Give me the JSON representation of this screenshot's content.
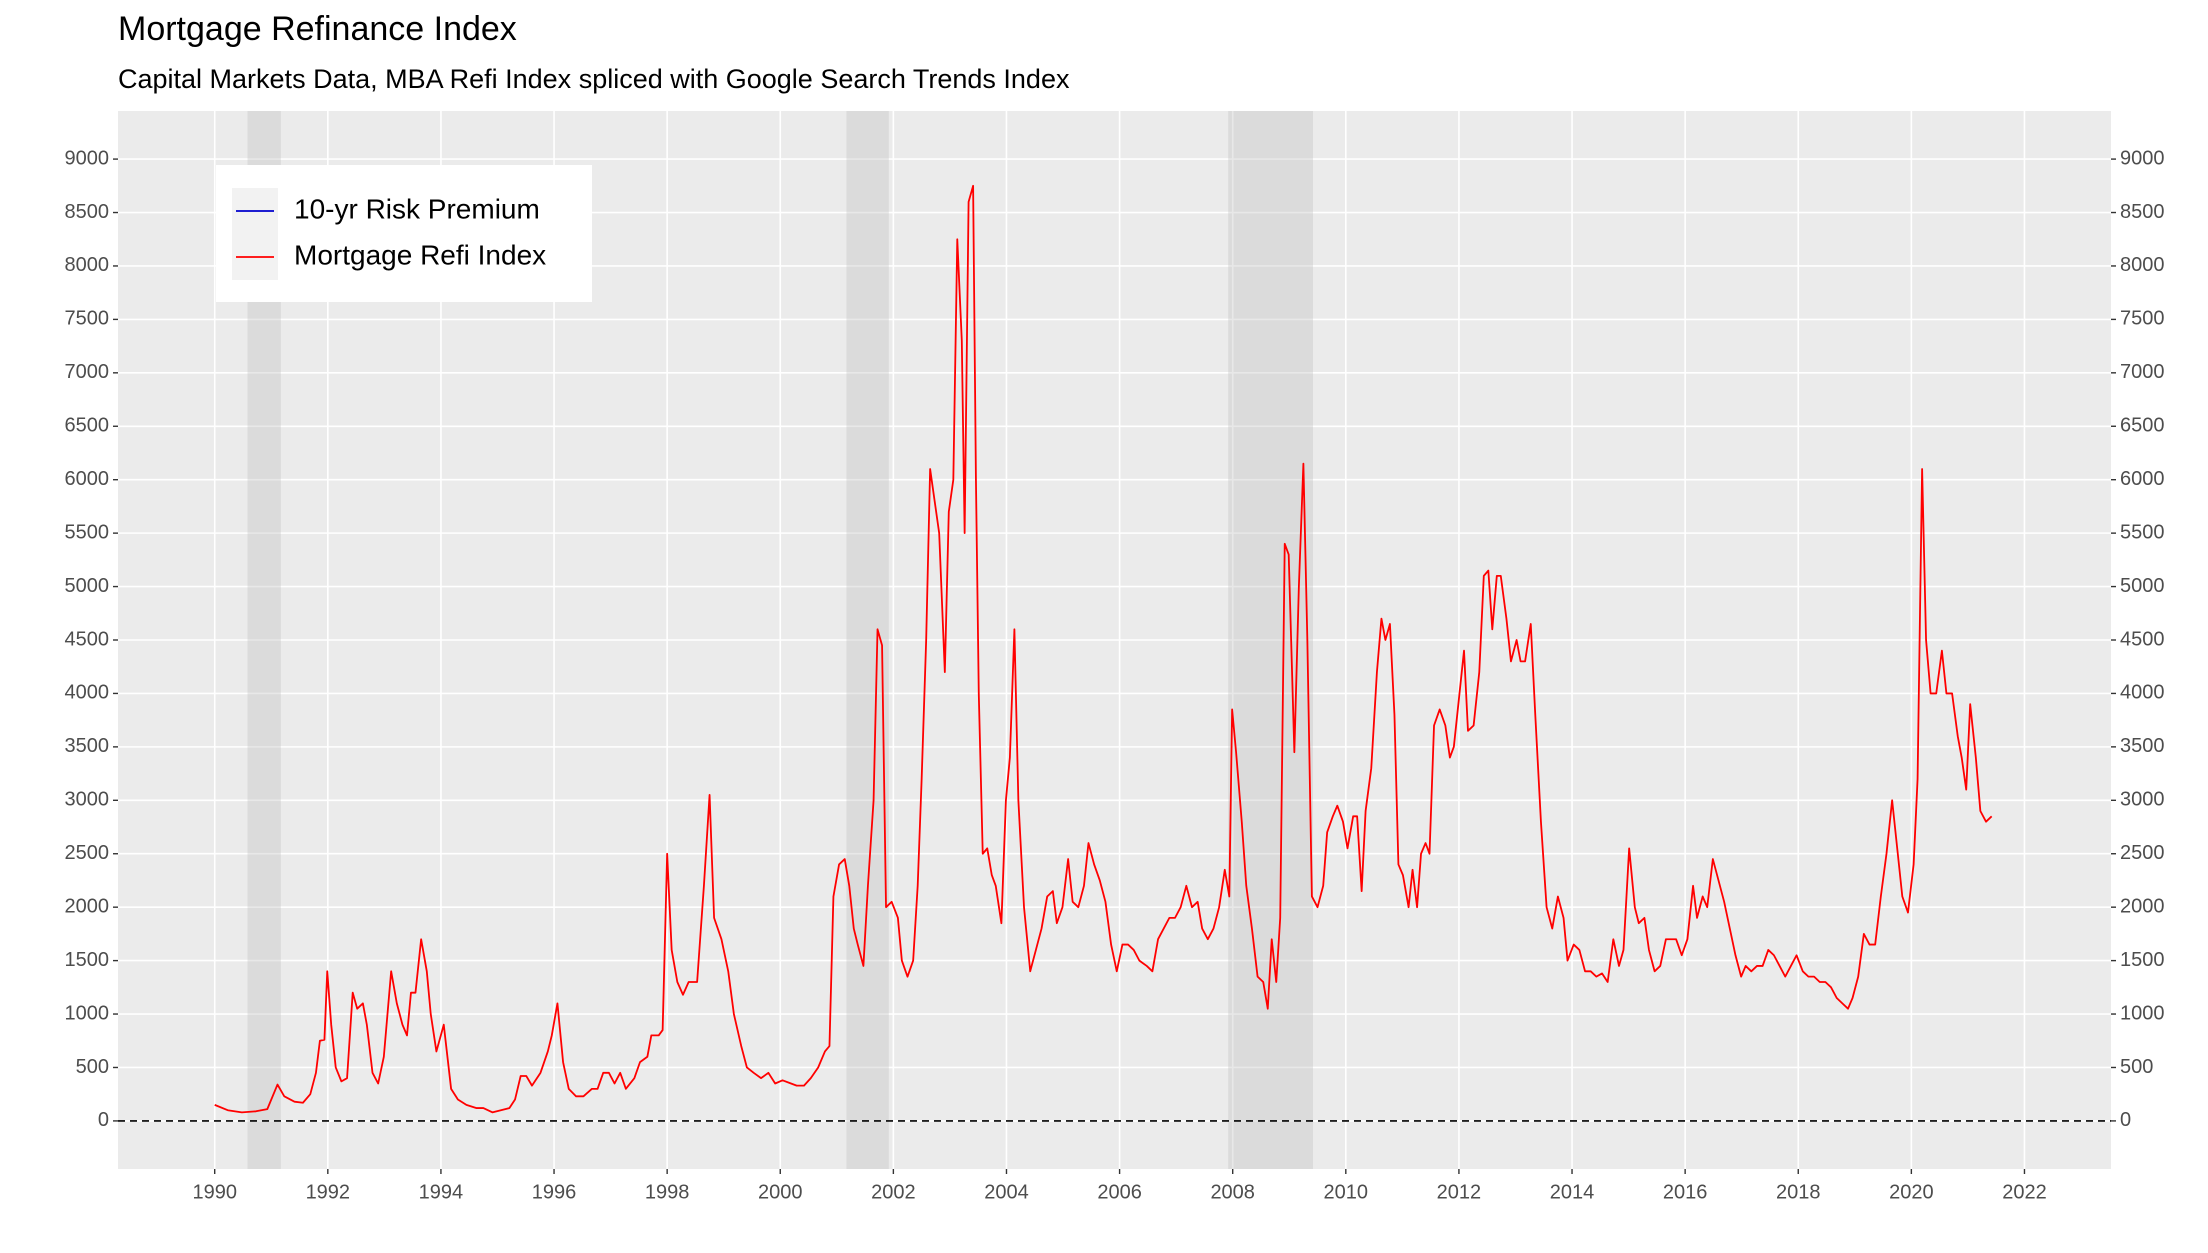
{
  "chart_data": {
    "type": "line",
    "title": "Mortgage Refinance Index",
    "subtitle": "Capital Markets Data, MBA Refi Index spliced with Google Search Trends Index",
    "xlim": [
      1988.29,
      2023.53
    ],
    "xticks": [
      1990,
      1992,
      1994,
      1996,
      1998,
      2000,
      2002,
      2004,
      2006,
      2008,
      2010,
      2012,
      2014,
      2016,
      2018,
      2020,
      2022
    ],
    "ylim": [
      -450,
      9450
    ],
    "yticks": [
      0,
      500,
      1000,
      1500,
      2000,
      2500,
      3000,
      3500,
      4000,
      4500,
      5000,
      5500,
      6000,
      6500,
      7000,
      7500,
      8000,
      8500,
      9000
    ],
    "grid": true,
    "legend": "top-left",
    "reference_line": 0,
    "shaded_ranges": [
      [
        1990.58,
        1991.17
      ],
      [
        2001.17,
        2001.92
      ],
      [
        2007.92,
        2009.42
      ]
    ],
    "series": [
      {
        "name": "10-yr Risk Premium",
        "color": "#0000cc",
        "x": [],
        "values": []
      },
      {
        "name": "Mortgage Refi Index",
        "color": "#ff0000",
        "x": [
          1990.0,
          1990.23,
          1990.48,
          1990.73,
          1990.93,
          1991.11,
          1991.23,
          1991.41,
          1991.56,
          1991.69,
          1991.79,
          1991.86,
          1991.94,
          1991.99,
          1992.06,
          1992.14,
          1992.24,
          1992.34,
          1992.44,
          1992.52,
          1992.62,
          1992.69,
          1992.79,
          1992.89,
          1992.99,
          1993.12,
          1993.22,
          1993.32,
          1993.4,
          1993.47,
          1993.55,
          1993.65,
          1993.75,
          1993.82,
          1993.92,
          1994.05,
          1994.18,
          1994.3,
          1994.45,
          1994.63,
          1994.75,
          1994.91,
          1995.06,
          1995.21,
          1995.31,
          1995.41,
          1995.51,
          1995.61,
          1995.76,
          1995.89,
          1995.96,
          1996.06,
          1996.16,
          1996.26,
          1996.39,
          1996.52,
          1996.67,
          1996.77,
          1996.87,
          1996.97,
          1997.07,
          1997.17,
          1997.27,
          1997.42,
          1997.52,
          1997.65,
          1997.72,
          1997.85,
          1997.92,
          1998.0,
          1998.08,
          1998.18,
          1998.28,
          1998.38,
          1998.53,
          1998.65,
          1998.75,
          1998.83,
          1998.96,
          1999.08,
          1999.18,
          1999.31,
          1999.41,
          1999.53,
          1999.66,
          1999.79,
          1999.91,
          2000.04,
          2000.19,
          2000.29,
          2000.42,
          2000.54,
          2000.67,
          2000.79,
          2000.87,
          2000.94,
          2001.04,
          2001.14,
          2001.22,
          2001.3,
          2001.37,
          2001.47,
          2001.55,
          2001.65,
          2001.72,
          2001.8,
          2001.87,
          2001.97,
          2002.08,
          2002.15,
          2002.25,
          2002.35,
          2002.43,
          2002.5,
          2002.58,
          2002.65,
          2002.73,
          2002.81,
          2002.91,
          2002.98,
          2003.06,
          2003.13,
          2003.21,
          2003.26,
          2003.33,
          2003.41,
          2003.46,
          2003.51,
          2003.58,
          2003.66,
          2003.74,
          2003.81,
          2003.91,
          2003.99,
          2004.06,
          2004.14,
          2004.21,
          2004.31,
          2004.42,
          2004.52,
          2004.62,
          2004.72,
          2004.82,
          2004.89,
          2004.99,
          2005.09,
          2005.17,
          2005.27,
          2005.37,
          2005.45,
          2005.55,
          2005.65,
          2005.75,
          2005.85,
          2005.95,
          2006.05,
          2006.15,
          2006.25,
          2006.35,
          2006.48,
          2006.58,
          2006.68,
          2006.78,
          2006.88,
          2006.98,
          2007.08,
          2007.18,
          2007.28,
          2007.38,
          2007.46,
          2007.56,
          2007.66,
          2007.76,
          2007.86,
          2007.94,
          2007.99,
          2008.06,
          2008.16,
          2008.24,
          2008.34,
          2008.44,
          2008.54,
          2008.62,
          2008.69,
          2008.77,
          2008.84,
          2008.92,
          2008.99,
          2009.09,
          2009.17,
          2009.25,
          2009.32,
          2009.4,
          2009.5,
          2009.6,
          2009.67,
          2009.77,
          2009.85,
          2009.95,
          2010.03,
          2010.13,
          2010.2,
          2010.28,
          2010.35,
          2010.45,
          2010.55,
          2010.63,
          2010.7,
          2010.78,
          2010.86,
          2010.93,
          2011.01,
          2011.11,
          2011.18,
          2011.26,
          2011.33,
          2011.41,
          2011.48,
          2011.56,
          2011.66,
          2011.76,
          2011.84,
          2011.91,
          2012.01,
          2012.09,
          2012.16,
          2012.26,
          2012.36,
          2012.44,
          2012.52,
          2012.59,
          2012.67,
          2012.74,
          2012.84,
          2012.92,
          2013.02,
          2013.09,
          2013.17,
          2013.27,
          2013.35,
          2013.45,
          2013.55,
          2013.65,
          2013.75,
          2013.85,
          2013.92,
          2014.03,
          2014.13,
          2014.23,
          2014.33,
          2014.43,
          2014.53,
          2014.63,
          2014.73,
          2014.83,
          2014.91,
          2015.01,
          2015.11,
          2015.18,
          2015.28,
          2015.36,
          2015.46,
          2015.56,
          2015.66,
          2015.74,
          2015.84,
          2015.94,
          2016.04,
          2016.14,
          2016.21,
          2016.31,
          2016.39,
          2016.49,
          2016.59,
          2016.69,
          2016.79,
          2016.89,
          2016.99,
          2017.07,
          2017.17,
          2017.27,
          2017.37,
          2017.47,
          2017.57,
          2017.67,
          2017.77,
          2017.87,
          2017.97,
          2018.08,
          2018.18,
          2018.28,
          2018.38,
          2018.48,
          2018.58,
          2018.68,
          2018.78,
          2018.88,
          2018.96,
          2019.06,
          2019.16,
          2019.26,
          2019.36,
          2019.46,
          2019.56,
          2019.66,
          2019.74,
          2019.84,
          2019.94,
          2020.04,
          2020.11,
          2020.19,
          2020.26,
          2020.34,
          2020.44,
          2020.54,
          2020.62,
          2020.72,
          2020.82,
          2020.89,
          2020.97,
          2021.04,
          2021.14,
          2021.22,
          2021.32,
          2021.42
        ],
        "values": [
          150,
          100,
          80,
          90,
          110,
          340,
          230,
          180,
          170,
          250,
          450,
          750,
          760,
          1400,
          900,
          500,
          370,
          400,
          1200,
          1050,
          1100,
          900,
          450,
          350,
          600,
          1400,
          1100,
          900,
          800,
          1200,
          1200,
          1700,
          1400,
          1000,
          650,
          900,
          300,
          200,
          150,
          120,
          120,
          80,
          100,
          120,
          200,
          420,
          420,
          330,
          450,
          650,
          800,
          1100,
          550,
          300,
          230,
          230,
          300,
          300,
          450,
          450,
          350,
          450,
          300,
          400,
          550,
          600,
          800,
          800,
          850,
          2500,
          1600,
          1300,
          1180,
          1300,
          1300,
          2200,
          3050,
          1900,
          1700,
          1400,
          1000,
          700,
          500,
          450,
          400,
          450,
          350,
          380,
          350,
          330,
          330,
          400,
          500,
          650,
          700,
          2100,
          2400,
          2450,
          2200,
          1800,
          1650,
          1450,
          2200,
          3000,
          4600,
          4450,
          2000,
          2050,
          1900,
          1500,
          1350,
          1500,
          2200,
          3200,
          4500,
          6100,
          5800,
          5500,
          4200,
          5700,
          6000,
          8250,
          7300,
          5500,
          8600,
          8750,
          6000,
          4000,
          2500,
          2550,
          2300,
          2200,
          1850,
          3000,
          3400,
          4600,
          3000,
          2000,
          1400,
          1600,
          1800,
          2100,
          2150,
          1850,
          2000,
          2450,
          2050,
          2000,
          2200,
          2600,
          2400,
          2250,
          2050,
          1650,
          1400,
          1650,
          1650,
          1600,
          1500,
          1450,
          1400,
          1700,
          1800,
          1900,
          1900,
          2000,
          2200,
          2000,
          2050,
          1800,
          1700,
          1800,
          2000,
          2350,
          2100,
          3850,
          3450,
          2800,
          2200,
          1800,
          1350,
          1300,
          1050,
          1700,
          1300,
          1900,
          5400,
          5300,
          3450,
          5000,
          6150,
          4500,
          2100,
          2000,
          2200,
          2700,
          2850,
          2950,
          2800,
          2550,
          2850,
          2850,
          2150,
          2900,
          3300,
          4200,
          4700,
          4500,
          4650,
          3800,
          2400,
          2300,
          2000,
          2350,
          2000,
          2500,
          2600,
          2500,
          3700,
          3850,
          3700,
          3400,
          3500,
          4000,
          4400,
          3650,
          3700,
          4200,
          5100,
          5150,
          4600,
          5100,
          5100,
          4700,
          4300,
          4500,
          4300,
          4300,
          4650,
          3800,
          2800,
          2000,
          1800,
          2100,
          1900,
          1500,
          1650,
          1600,
          1400,
          1400,
          1350,
          1380,
          1300,
          1700,
          1450,
          1600,
          2550,
          2000,
          1850,
          1900,
          1600,
          1400,
          1450,
          1700,
          1700,
          1700,
          1550,
          1700,
          2200,
          1900,
          2100,
          2000,
          2450,
          2250,
          2050,
          1800,
          1550,
          1350,
          1450,
          1400,
          1450,
          1450,
          1600,
          1550,
          1450,
          1350,
          1450,
          1550,
          1400,
          1350,
          1350,
          1300,
          1300,
          1250,
          1150,
          1100,
          1050,
          1150,
          1350,
          1750,
          1650,
          1650,
          2100,
          2500,
          3000,
          2600,
          2100,
          1950,
          2400,
          3200,
          6100,
          4500,
          4000,
          4000,
          4400,
          4000,
          4000,
          3600,
          3400,
          3100,
          3900,
          3400,
          2900,
          2800,
          2850
        ]
      }
    ]
  }
}
